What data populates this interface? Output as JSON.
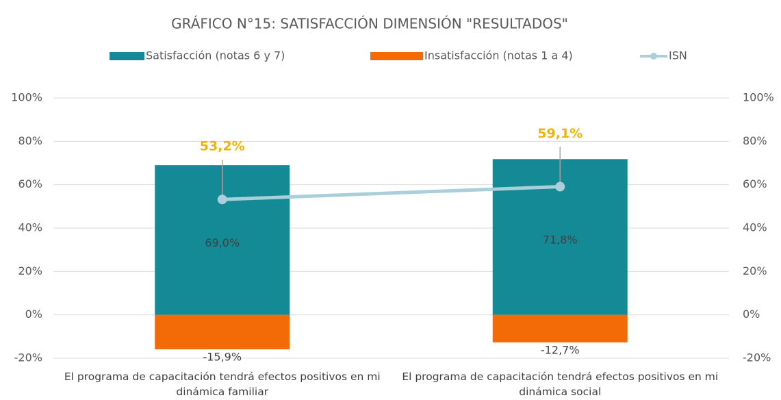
{
  "chart_data": {
    "type": "bar",
    "title": "GRÁFICO N°15: SATISFACCIÓN DIMENSIÓN \"RESULTADOS\"",
    "categories": [
      "El programa de capacitación tendrá efectos positivos en mi dinámica familiar",
      "El programa de capacitación tendrá efectos positivos en mi dinámica social"
    ],
    "series": [
      {
        "name": "Satisfacción (notas 6 y 7)",
        "type": "bar",
        "color": "#138a96",
        "values": [
          69.0,
          71.8
        ],
        "value_labels": [
          "69,0%",
          "71,8%"
        ]
      },
      {
        "name": "Insatisfacción (notas 1 a 4)",
        "type": "bar",
        "color": "#f26b06",
        "values": [
          -15.9,
          -12.7
        ],
        "value_labels": [
          "-15,9%",
          "-12,7%"
        ]
      },
      {
        "name": "ISN",
        "type": "line",
        "color": "#a9cfdb",
        "values": [
          53.2,
          59.1
        ],
        "value_labels": [
          "53,2%",
          "59,1%"
        ]
      }
    ],
    "ylim": [
      -20,
      100
    ],
    "yticks": [
      {
        "value": -20,
        "label": "-20%"
      },
      {
        "value": 0,
        "label": "0%"
      },
      {
        "value": 20,
        "label": "20%"
      },
      {
        "value": 40,
        "label": "40%"
      },
      {
        "value": 60,
        "label": "60%"
      },
      {
        "value": 80,
        "label": "80%"
      },
      {
        "value": 100,
        "label": "100%"
      }
    ],
    "y2lim": [
      -20,
      100
    ],
    "y2ticks": [
      {
        "value": -20,
        "label": "-20%"
      },
      {
        "value": 0,
        "label": "0%"
      },
      {
        "value": 20,
        "label": "20%"
      },
      {
        "value": 40,
        "label": "40%"
      },
      {
        "value": 60,
        "label": "60%"
      },
      {
        "value": 80,
        "label": "80%"
      },
      {
        "value": 100,
        "label": "100%"
      }
    ],
    "grid": true,
    "legend": "top"
  }
}
